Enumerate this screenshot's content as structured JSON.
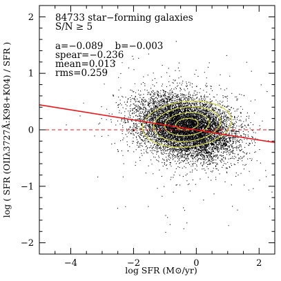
{
  "chart_data": {
    "type": "scatter",
    "title": "",
    "xlabel": "log SFR (M⊙/yr)",
    "ylabel": "log ( SFR (OIIλ3727Å:K98+K04) / SFR )",
    "xlim": [
      -5,
      2.5
    ],
    "ylim": [
      -2.2,
      2.2
    ],
    "xticks": [
      -4,
      -2,
      0,
      2
    ],
    "yticks": [
      -2,
      -1,
      0,
      1,
      2
    ],
    "xtick_labels": [
      "−4",
      "−2",
      "0",
      "2"
    ],
    "ytick_labels": [
      "−2",
      "−1",
      "0",
      "1",
      "2"
    ],
    "grid": false,
    "annotations": [
      "84733 star−forming galaxies",
      "S/N ≥ 5",
      "a=−0.089    b=−0.003",
      "spear=−0.236",
      "mean=0.013",
      "rms=0.259"
    ],
    "stats": {
      "n_galaxies": 84733,
      "sn_min": 5,
      "a": -0.089,
      "b": -0.003,
      "spearman": -0.236,
      "mean": 0.013,
      "rms": 0.259
    },
    "point_cloud": {
      "n_points": 84733,
      "center_x": -0.35,
      "center_y": 0.05,
      "std_x": 0.75,
      "std_y": 0.26
    },
    "fit_line": {
      "slope": -0.089,
      "intercept": -0.003,
      "color": "#e8161b"
    },
    "reference_line": {
      "y": 0,
      "style": "dashed",
      "color": "#e8161b"
    },
    "contours": {
      "color": "#d6d84a",
      "levels": 4
    },
    "colors": {
      "points": "#000000",
      "fit": "#e8161b",
      "contour": "#d6d84a"
    }
  }
}
